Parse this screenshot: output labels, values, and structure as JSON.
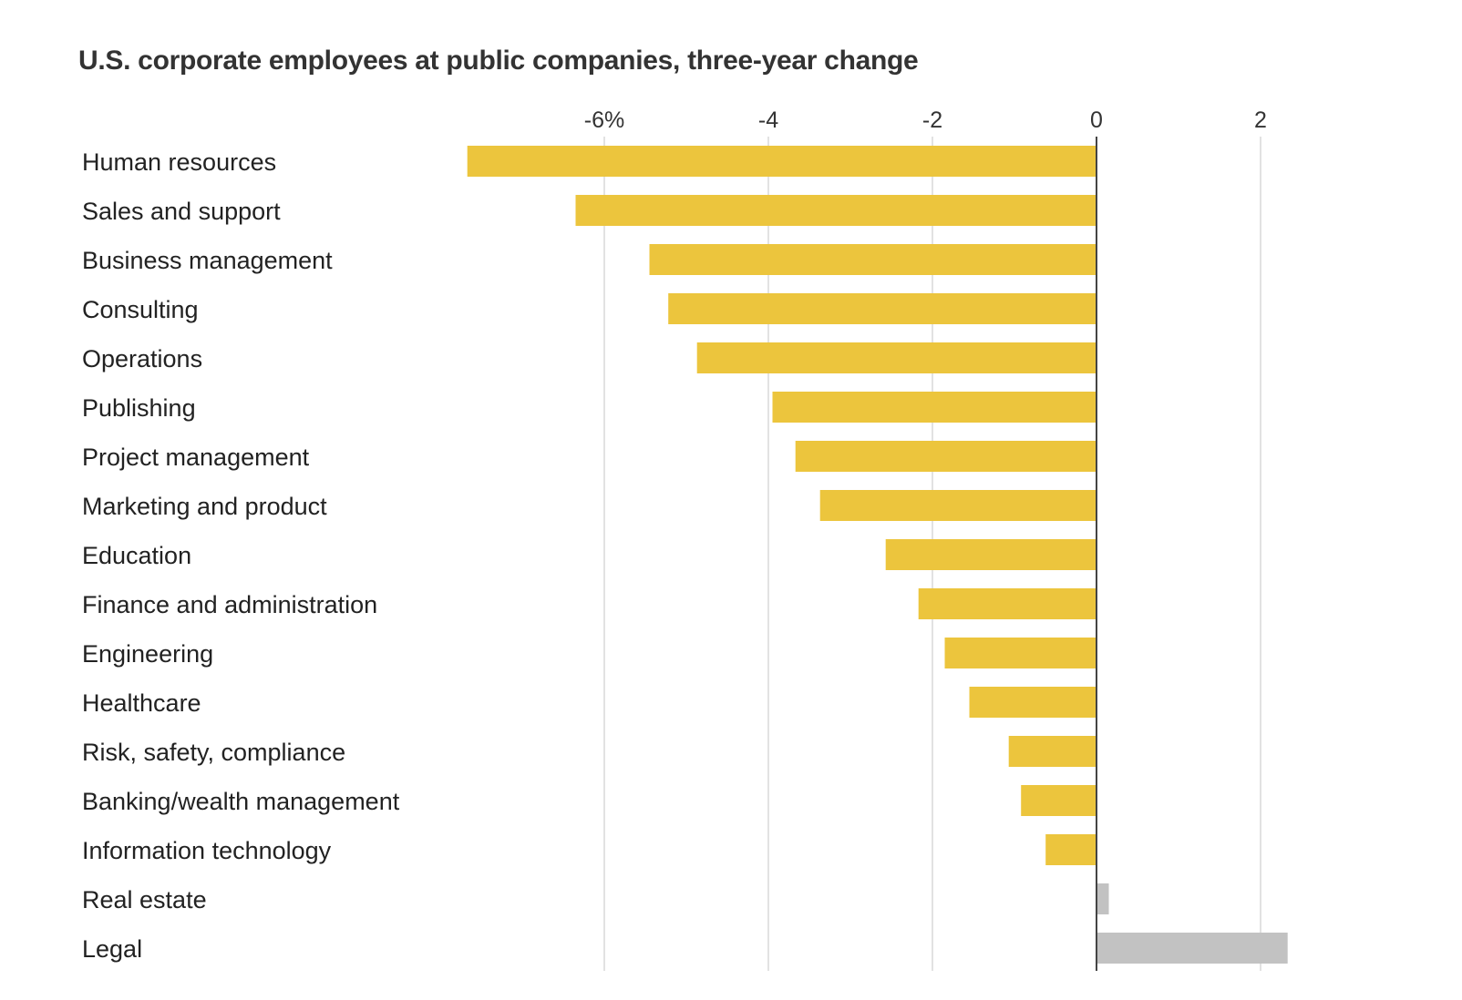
{
  "chart_data": {
    "type": "bar",
    "orientation": "horizontal",
    "title": "U.S. corporate employees at public companies, three-year change",
    "xlabel": "",
    "ylabel": "",
    "unit": "%",
    "xlim": [
      -7.9,
      2.4
    ],
    "xticks": [
      -6,
      -4,
      -2,
      0,
      2
    ],
    "xtick_labels": [
      "-6%",
      "-4",
      "-2",
      "0",
      "2"
    ],
    "grid": "vertical",
    "categories": [
      "Human resources",
      "Sales and support",
      "Business management",
      "Consulting",
      "Operations",
      "Publishing",
      "Project management",
      "Marketing and product",
      "Education",
      "Finance and administration",
      "Engineering",
      "Healthcare",
      "Risk, safety, compliance",
      "Banking/wealth management",
      "Information technology",
      "Real estate",
      "Legal"
    ],
    "values": [
      -7.67,
      -6.35,
      -5.45,
      -5.22,
      -4.87,
      -3.95,
      -3.67,
      -3.37,
      -2.57,
      -2.17,
      -1.85,
      -1.55,
      -1.07,
      -0.92,
      -0.62,
      0.15,
      2.33
    ],
    "colors": {
      "negative": "#ecc53d",
      "positive": "#c2c2c2",
      "zero_line": "#444444",
      "grid": "#e2e2e2"
    }
  }
}
